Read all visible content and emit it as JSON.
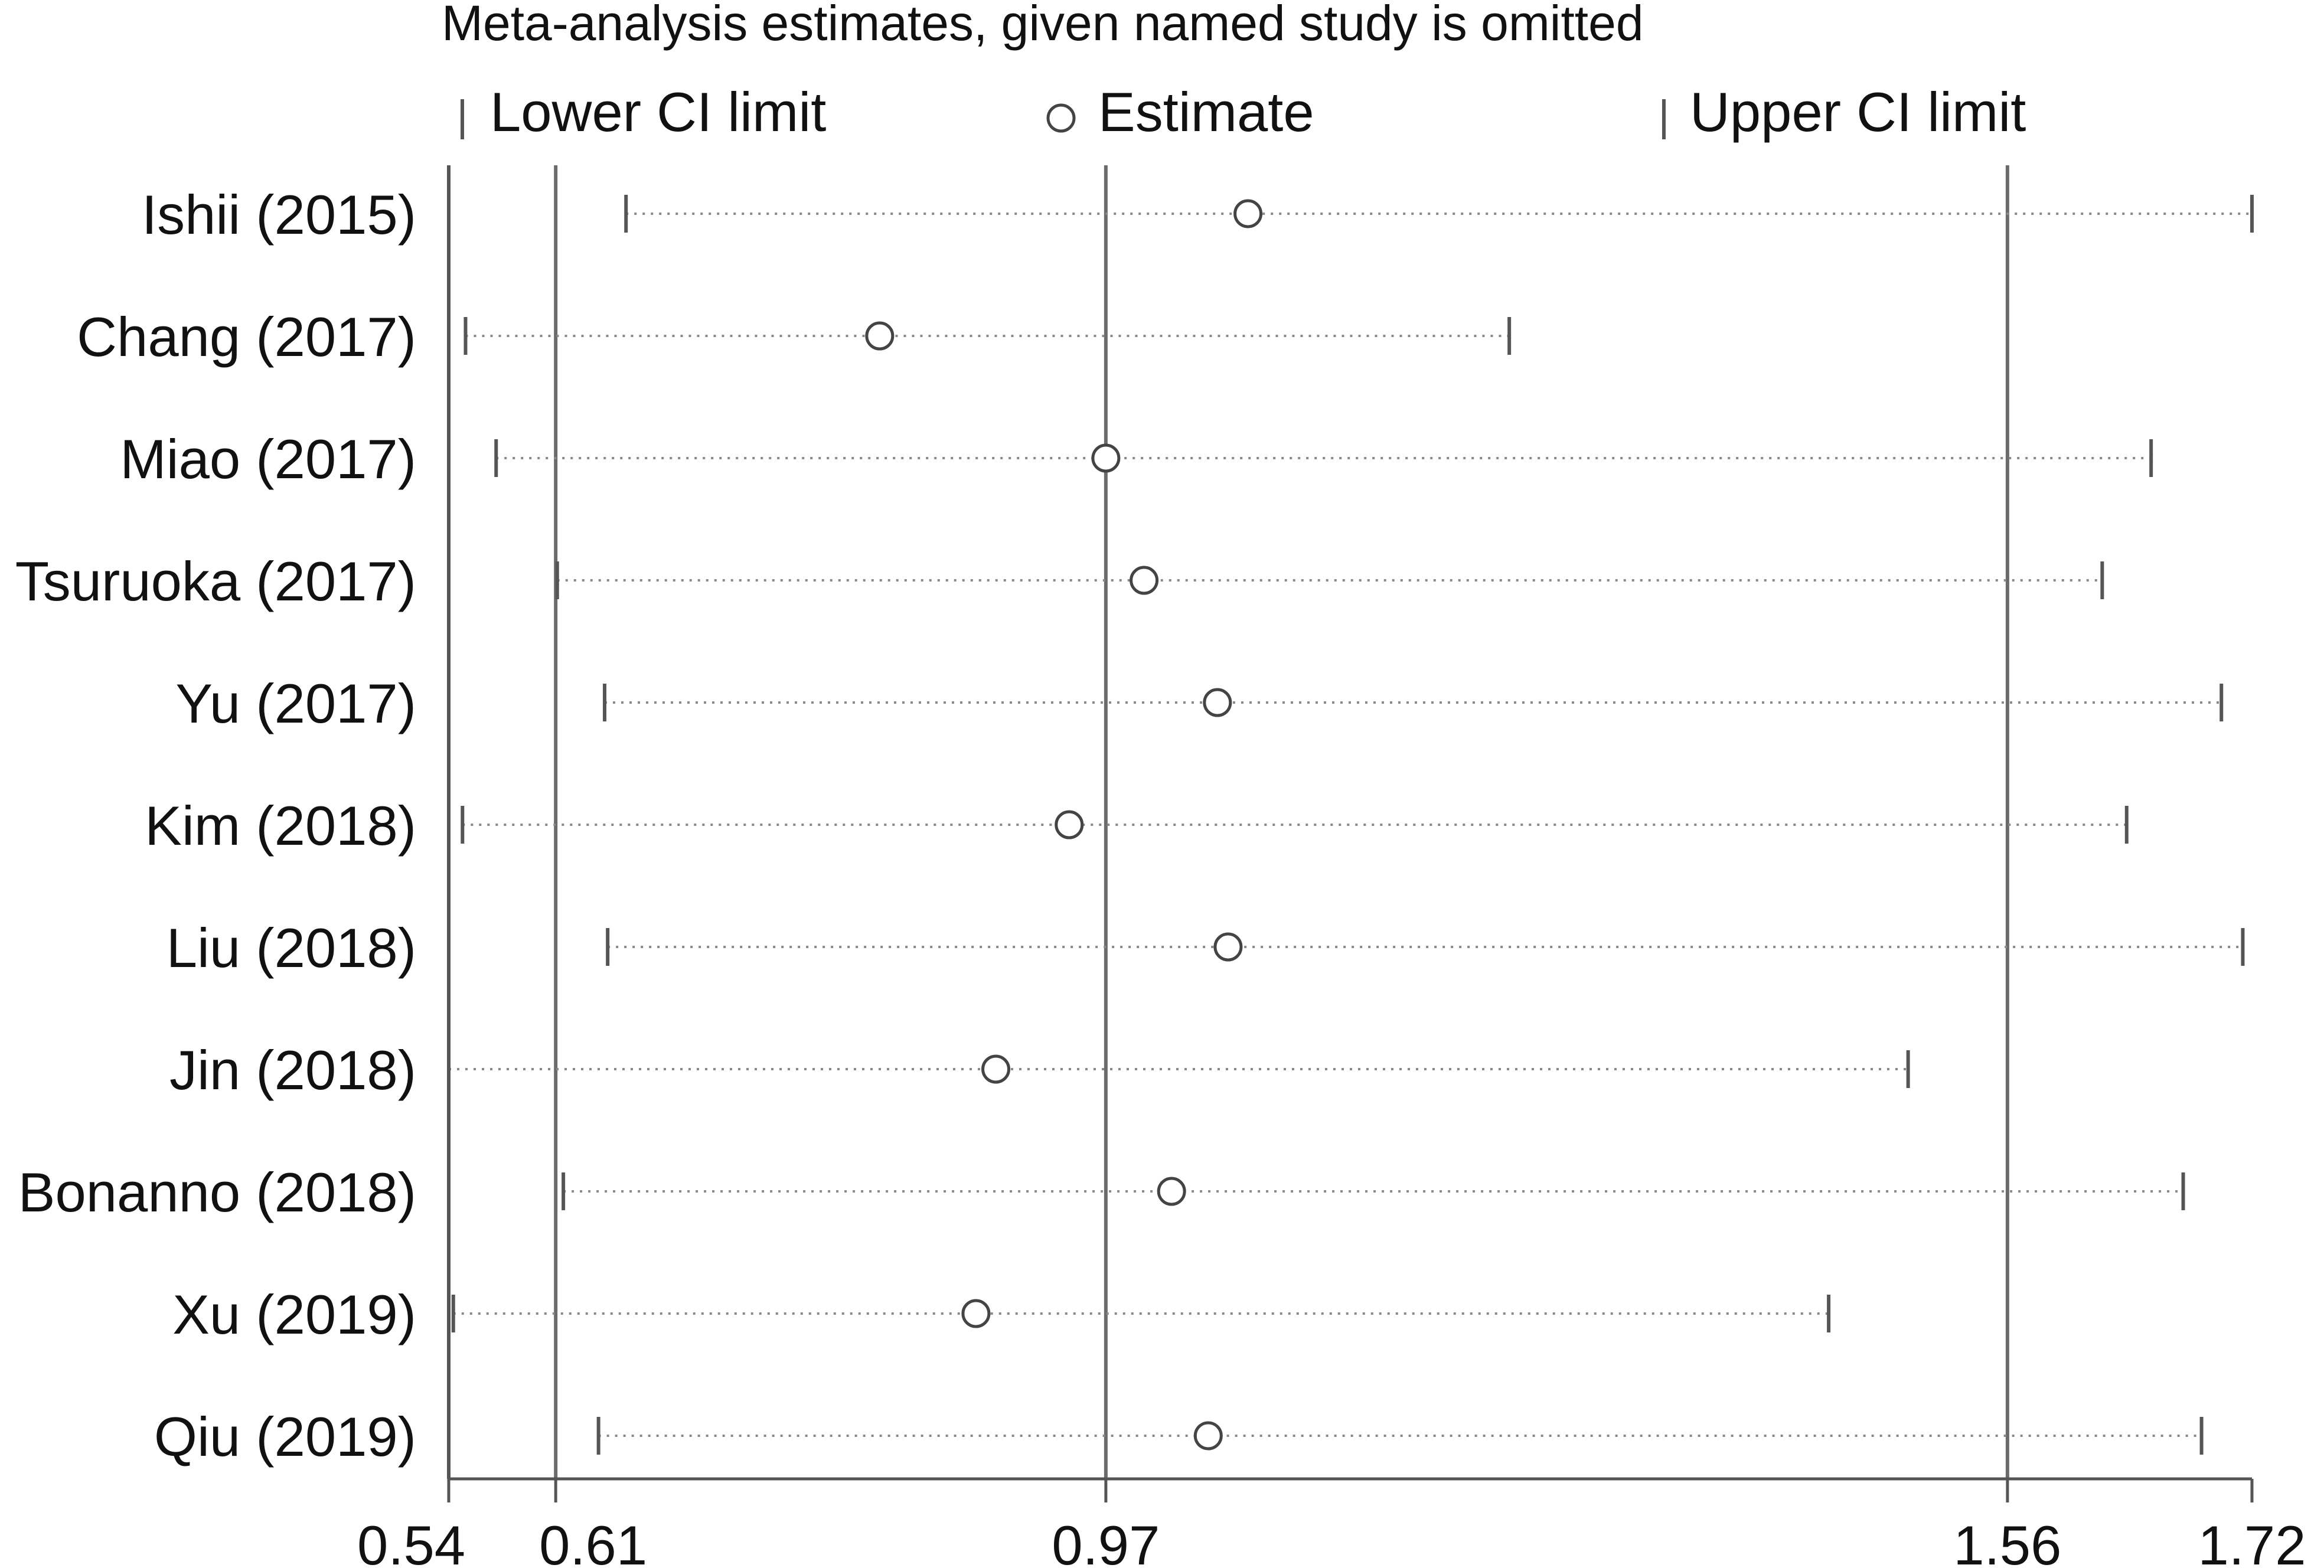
{
  "chart_data": {
    "type": "forest",
    "title": "Meta-analysis estimates, given named study is omitted",
    "legend": {
      "lower": "Lower CI limit",
      "estimate": "Estimate",
      "upper": "Upper CI limit",
      "placement": "top"
    },
    "xlim": [
      0.54,
      1.72
    ],
    "x_ticks": [
      {
        "value": 0.54,
        "label": "0.54"
      },
      {
        "value": 0.61,
        "label": "0.61"
      },
      {
        "value": 0.97,
        "label": "0.97"
      },
      {
        "value": 1.56,
        "label": "1.56"
      },
      {
        "value": 1.72,
        "label": "1.72"
      }
    ],
    "reference_lines": [
      0.61,
      0.97,
      1.56
    ],
    "studies": [
      {
        "name": "Ishii (2015)",
        "lower": 0.656,
        "estimate": 1.063,
        "upper": 1.72
      },
      {
        "name": "Chang (2017)",
        "lower": 0.551,
        "estimate": 0.822,
        "upper": 1.234
      },
      {
        "name": "Miao (2017)",
        "lower": 0.571,
        "estimate": 0.97,
        "upper": 1.654
      },
      {
        "name": "Tsuruoka (2017)",
        "lower": 0.611,
        "estimate": 0.995,
        "upper": 1.622
      },
      {
        "name": "Yu (2017)",
        "lower": 0.642,
        "estimate": 1.043,
        "upper": 1.7
      },
      {
        "name": "Kim (2018)",
        "lower": 0.549,
        "estimate": 0.946,
        "upper": 1.638
      },
      {
        "name": "Liu (2018)",
        "lower": 0.644,
        "estimate": 1.05,
        "upper": 1.714
      },
      {
        "name": "Jin (2018)",
        "lower": 0.54,
        "estimate": 0.898,
        "upper": 1.495
      },
      {
        "name": "Bonanno (2018)",
        "lower": 0.615,
        "estimate": 1.013,
        "upper": 1.675
      },
      {
        "name": "Xu (2019)",
        "lower": 0.543,
        "estimate": 0.885,
        "upper": 1.443
      },
      {
        "name": "Qiu (2019)",
        "lower": 0.638,
        "estimate": 1.037,
        "upper": 1.687
      }
    ],
    "colors": {
      "axis": "#555555",
      "reference_line": "#6b6b6b",
      "ci_dots": "#8a8a8a",
      "marker": "#444444",
      "text": "#111111"
    }
  }
}
